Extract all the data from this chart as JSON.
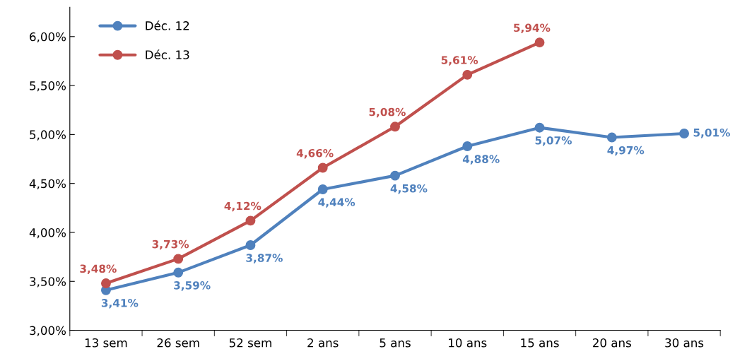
{
  "chart_data": {
    "type": "line",
    "categories": [
      "13 sem",
      "26 sem",
      "52 sem",
      "2 ans",
      "5 ans",
      "10 ans",
      "15 ans",
      "20 ans",
      "30 ans"
    ],
    "series": [
      {
        "name": "Déc. 12",
        "color": "#4f81bd",
        "values": [
          3.41,
          3.59,
          3.87,
          4.44,
          4.58,
          4.88,
          5.07,
          4.97,
          5.01
        ],
        "value_labels": [
          "3,41%",
          "3,59%",
          "3,87%",
          "4,44%",
          "4,58%",
          "4,88%",
          "5,07%",
          "4,97%",
          "5,01%"
        ]
      },
      {
        "name": "Déc. 13",
        "color": "#c0504d",
        "values": [
          3.48,
          3.73,
          4.12,
          4.66,
          5.08,
          5.61,
          5.94,
          null,
          null
        ],
        "value_labels": [
          "3,48%",
          "3,73%",
          "4,12%",
          "4,66%",
          "5,08%",
          "5,61%",
          "5,94%",
          null,
          null
        ]
      }
    ],
    "ylim": [
      3.0,
      6.3
    ],
    "yticks": [
      {
        "value": 3.0,
        "label": "3,00%"
      },
      {
        "value": 3.5,
        "label": "3,50%"
      },
      {
        "value": 4.0,
        "label": "4,00%"
      },
      {
        "value": 4.5,
        "label": "4,50%"
      },
      {
        "value": 5.0,
        "label": "5,00%"
      },
      {
        "value": 5.5,
        "label": "5,50%"
      },
      {
        "value": 6.0,
        "label": "6,00%"
      }
    ],
    "legend": "top left",
    "marker": "circle",
    "line_style": "solid",
    "grid": false
  }
}
